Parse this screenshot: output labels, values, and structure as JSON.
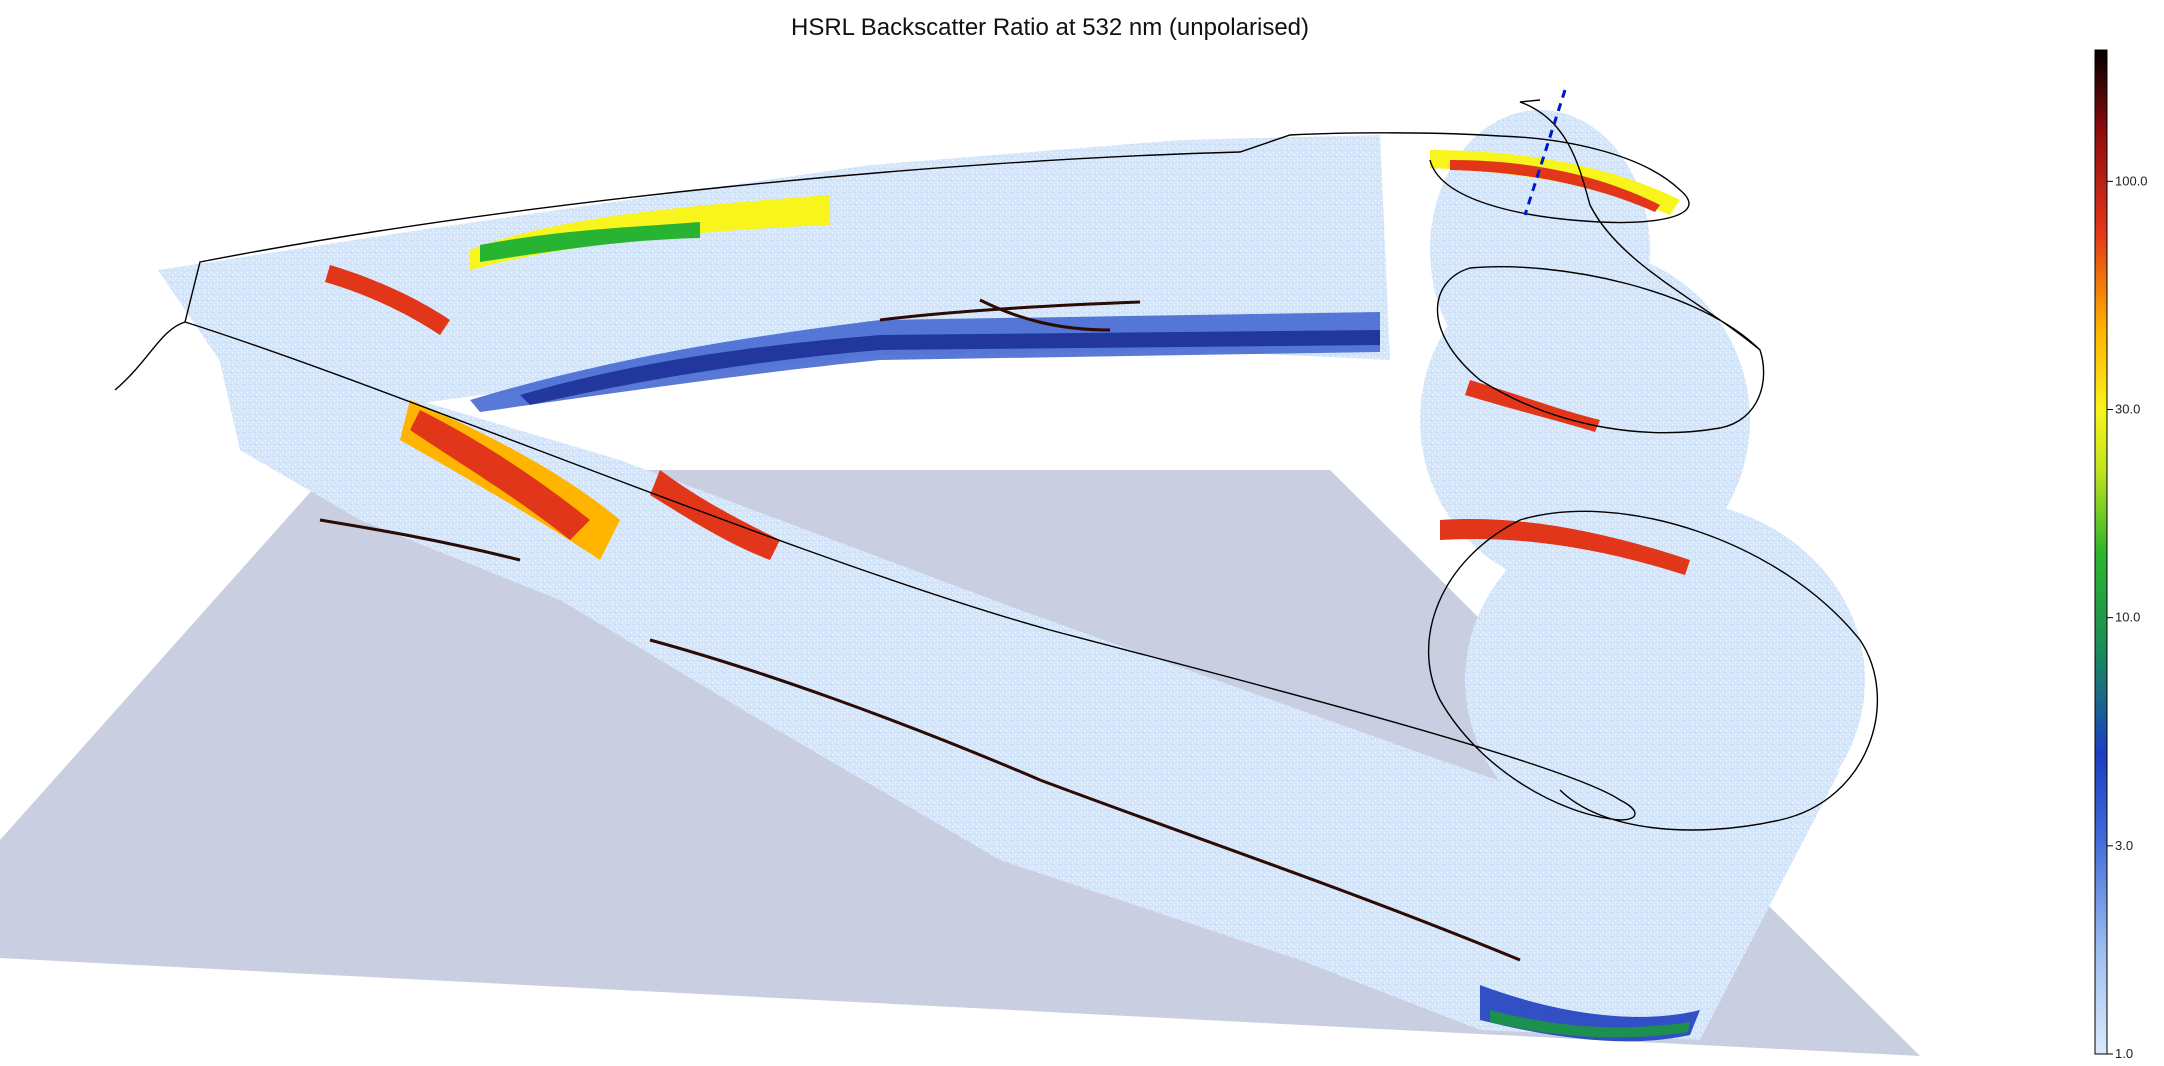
{
  "chart_data": {
    "type": "heatmap",
    "title": "HSRL Backscatter Ratio at 532 nm (unpolarised)",
    "projection": "3D curtain along flight track",
    "colorbar": {
      "scale": "log",
      "range": [
        1.0,
        200.0
      ],
      "ticks": [
        1.0,
        3.0,
        10.0,
        30.0,
        100.0
      ],
      "tick_labels": [
        "1.0",
        "3.0",
        "10.0",
        "30.0",
        "100.0"
      ],
      "colors": [
        "#dbe9fb",
        "#6f9be6",
        "#1f3fbf",
        "#1d8f4e",
        "#28b432",
        "#f7f51c",
        "#ffb400",
        "#e2361a",
        "#8c0d0d",
        "#000000"
      ]
    },
    "legend": "none",
    "grid": false
  },
  "colors": {
    "ground": "#c9cee0",
    "clear_air": "#d3e6fb",
    "flight_track": "#000000",
    "dropsonde": "#0018c8"
  }
}
